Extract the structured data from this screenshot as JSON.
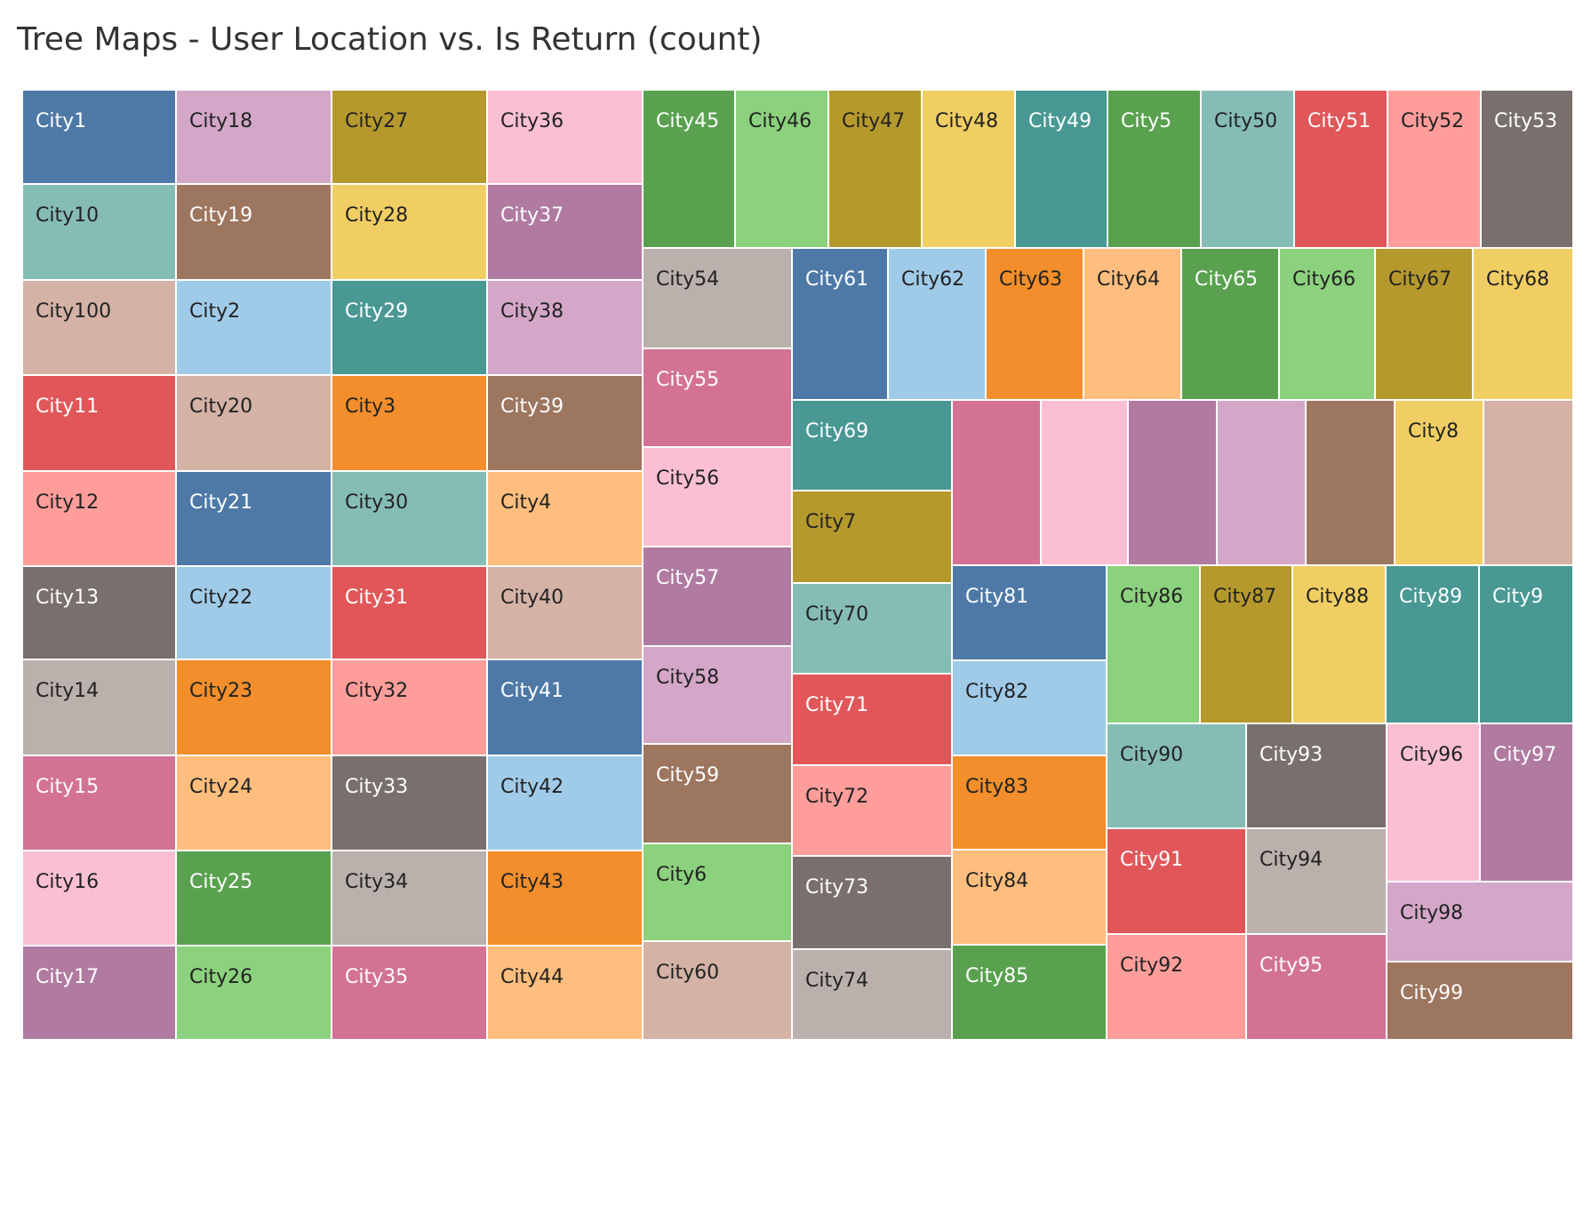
{
  "title": "Tree Maps - User Location vs. Is Return (count)",
  "chart_data": {
    "type": "treemap",
    "title": "Tree Maps - User Location vs. Is Return (count)",
    "legend": "none",
    "tiles": [
      {
        "name": "City1",
        "color": "#4e79a7"
      },
      {
        "name": "City10",
        "color": "#86bcb6"
      },
      {
        "name": "City100",
        "color": "#d4b2a6"
      },
      {
        "name": "City11",
        "color": "#e15759"
      },
      {
        "name": "City12",
        "color": "#ff9d9a"
      },
      {
        "name": "City13",
        "color": "#79706e"
      },
      {
        "name": "City14",
        "color": "#bab0ac"
      },
      {
        "name": "City15",
        "color": "#d37295"
      },
      {
        "name": "City16",
        "color": "#fabfd2"
      },
      {
        "name": "City17",
        "color": "#b07aa1"
      },
      {
        "name": "City18",
        "color": "#d4a6c8"
      },
      {
        "name": "City19",
        "color": "#9d7660"
      },
      {
        "name": "City2",
        "color": "#a0cbe8"
      },
      {
        "name": "City20",
        "color": "#d4b2a6"
      },
      {
        "name": "City21",
        "color": "#4e79a7"
      },
      {
        "name": "City22",
        "color": "#a0cbe8"
      },
      {
        "name": "City23",
        "color": "#f28e2b"
      },
      {
        "name": "City24",
        "color": "#ffbe7d"
      },
      {
        "name": "City25",
        "color": "#59a14f"
      },
      {
        "name": "City26",
        "color": "#8cd17d"
      },
      {
        "name": "City27",
        "color": "#b6992d"
      },
      {
        "name": "City28",
        "color": "#f1ce63"
      },
      {
        "name": "City29",
        "color": "#499894"
      },
      {
        "name": "City3",
        "color": "#f28e2b"
      },
      {
        "name": "City30",
        "color": "#86bcb6"
      },
      {
        "name": "City31",
        "color": "#e15759"
      },
      {
        "name": "City32",
        "color": "#ff9d9a"
      },
      {
        "name": "City33",
        "color": "#79706e"
      },
      {
        "name": "City34",
        "color": "#bab0ac"
      },
      {
        "name": "City35",
        "color": "#d37295"
      },
      {
        "name": "City36",
        "color": "#fabfd2"
      },
      {
        "name": "City37",
        "color": "#b07aa1"
      },
      {
        "name": "City38",
        "color": "#d4a6c8"
      },
      {
        "name": "City39",
        "color": "#9d7660"
      },
      {
        "name": "City4",
        "color": "#ffbe7d"
      },
      {
        "name": "City40",
        "color": "#d4b2a6"
      },
      {
        "name": "City41",
        "color": "#4e79a7"
      },
      {
        "name": "City42",
        "color": "#a0cbe8"
      },
      {
        "name": "City43",
        "color": "#f28e2b"
      },
      {
        "name": "City44",
        "color": "#ffbe7d"
      },
      {
        "name": "City45",
        "color": "#59a14f"
      },
      {
        "name": "City46",
        "color": "#8cd17d"
      },
      {
        "name": "City47",
        "color": "#b6992d"
      },
      {
        "name": "City48",
        "color": "#f1ce63"
      },
      {
        "name": "City49",
        "color": "#499894"
      },
      {
        "name": "City5",
        "color": "#59a14f"
      },
      {
        "name": "City50",
        "color": "#86bcb6"
      },
      {
        "name": "City51",
        "color": "#e15759"
      },
      {
        "name": "City52",
        "color": "#ff9d9a"
      },
      {
        "name": "City53",
        "color": "#79706e"
      },
      {
        "name": "City54",
        "color": "#bab0ac"
      },
      {
        "name": "City55",
        "color": "#d37295"
      },
      {
        "name": "City56",
        "color": "#fabfd2"
      },
      {
        "name": "City57",
        "color": "#b07aa1"
      },
      {
        "name": "City58",
        "color": "#d4a6c8"
      },
      {
        "name": "City59",
        "color": "#9d7660"
      },
      {
        "name": "City6",
        "color": "#8cd17d"
      },
      {
        "name": "City60",
        "color": "#d4b2a6"
      },
      {
        "name": "City61",
        "color": "#4e79a7"
      },
      {
        "name": "City62",
        "color": "#a0cbe8"
      },
      {
        "name": "City63",
        "color": "#f28e2b"
      },
      {
        "name": "City64",
        "color": "#ffbe7d"
      },
      {
        "name": "City65",
        "color": "#59a14f"
      },
      {
        "name": "City66",
        "color": "#8cd17d"
      },
      {
        "name": "City67",
        "color": "#b6992d"
      },
      {
        "name": "City68",
        "color": "#f1ce63"
      },
      {
        "name": "City69",
        "color": "#499894"
      },
      {
        "name": "City7",
        "color": "#b6992d"
      },
      {
        "name": "City70",
        "color": "#86bcb6"
      },
      {
        "name": "City71",
        "color": "#e15759"
      },
      {
        "name": "City72",
        "color": "#ff9d9a"
      },
      {
        "name": "City73",
        "color": "#79706e"
      },
      {
        "name": "City74",
        "color": "#bab0ac"
      },
      {
        "name": "",
        "color": "#d37295"
      },
      {
        "name": "",
        "color": "#fabfd2"
      },
      {
        "name": "",
        "color": "#b07aa1"
      },
      {
        "name": "",
        "color": "#d4a6c8"
      },
      {
        "name": "",
        "color": "#9d7660"
      },
      {
        "name": "City8",
        "color": "#f1ce63"
      },
      {
        "name": "",
        "color": "#d4b2a6"
      },
      {
        "name": "City81",
        "color": "#4e79a7"
      },
      {
        "name": "City82",
        "color": "#a0cbe8"
      },
      {
        "name": "City83",
        "color": "#f28e2b"
      },
      {
        "name": "City84",
        "color": "#ffbe7d"
      },
      {
        "name": "City85",
        "color": "#59a14f"
      },
      {
        "name": "City86",
        "color": "#8cd17d"
      },
      {
        "name": "City87",
        "color": "#b6992d"
      },
      {
        "name": "City88",
        "color": "#f1ce63"
      },
      {
        "name": "City89",
        "color": "#499894"
      },
      {
        "name": "City9",
        "color": "#499894"
      },
      {
        "name": "City90",
        "color": "#86bcb6"
      },
      {
        "name": "City91",
        "color": "#e15759"
      },
      {
        "name": "City92",
        "color": "#ff9d9a"
      },
      {
        "name": "City93",
        "color": "#79706e"
      },
      {
        "name": "City94",
        "color": "#bab0ac"
      },
      {
        "name": "City95",
        "color": "#d37295"
      },
      {
        "name": "City96",
        "color": "#fabfd2"
      },
      {
        "name": "City97",
        "color": "#b07aa1"
      },
      {
        "name": "City98",
        "color": "#d4a6c8"
      },
      {
        "name": "City99",
        "color": "#9d7660"
      }
    ]
  }
}
